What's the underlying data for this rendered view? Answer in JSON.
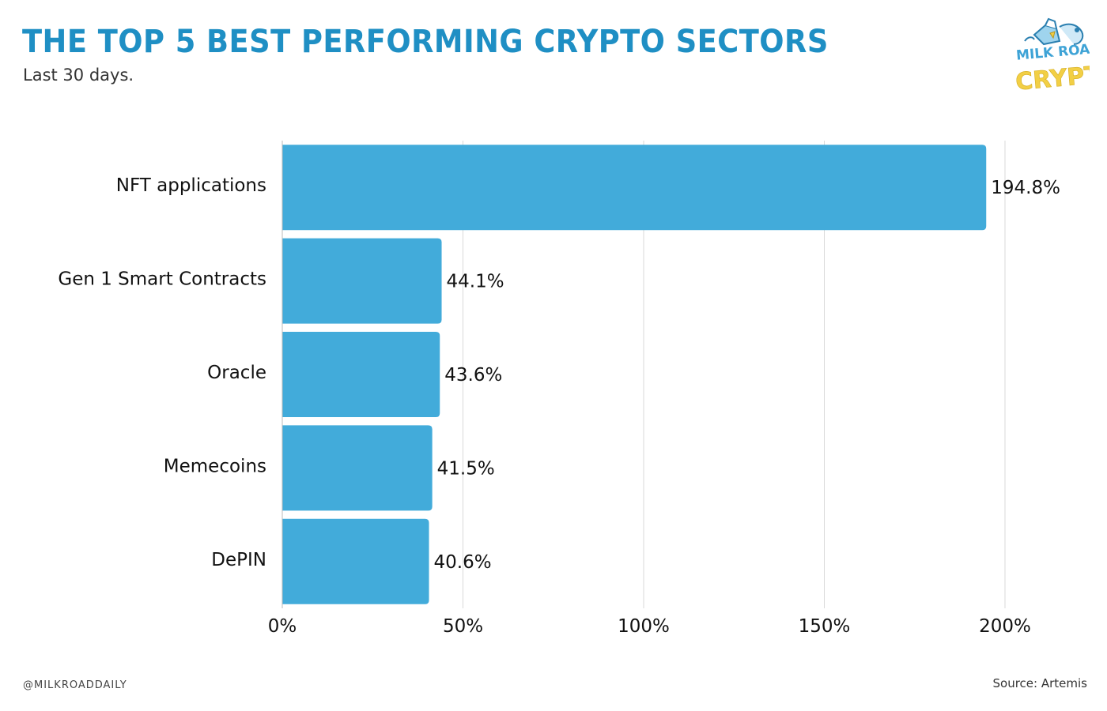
{
  "header": {
    "title": "THE TOP 5 BEST PERFORMING CRYPTO SECTORS",
    "subtitle": "Last 30 days."
  },
  "logo": {
    "line1": "MILK ROAD",
    "line2": "CRYPTO",
    "icon": "milk-road-logo"
  },
  "footer": {
    "handle": "@MILKROADDAILY",
    "source": "Source: Artemis"
  },
  "colors": {
    "bar": "#42abda",
    "title": "#1f8fc4",
    "grid": "#d9d9d9",
    "logo_blue": "#3ea3d6",
    "logo_yellow": "#f2cf45"
  },
  "chart_data": {
    "type": "bar",
    "orientation": "horizontal",
    "categories": [
      "NFT applications",
      "Gen 1 Smart Contracts",
      "Oracle",
      "Memecoins",
      "DePIN"
    ],
    "values": [
      194.8,
      44.1,
      43.6,
      41.5,
      40.6
    ],
    "data_labels": [
      "194.8%",
      "44.1%",
      "43.6%",
      "41.5%",
      "40.6%"
    ],
    "xticks": [
      0,
      50,
      100,
      150,
      200
    ],
    "xtick_labels": [
      "0%",
      "50%",
      "100%",
      "150%",
      "200%"
    ],
    "xlim": [
      0,
      200
    ],
    "grid": "vertical",
    "title": "THE TOP 5 BEST PERFORMING CRYPTO SECTORS",
    "xlabel": "",
    "ylabel": ""
  }
}
